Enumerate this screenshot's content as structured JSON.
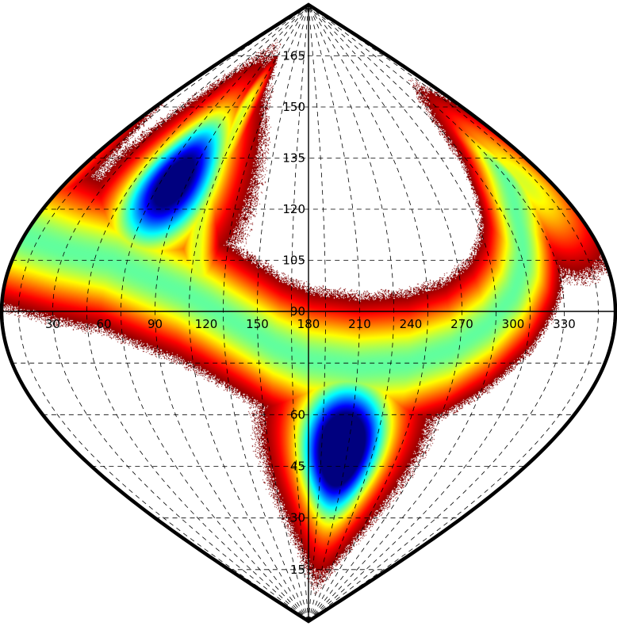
{
  "chart_data": {
    "type": "heatmap",
    "projection": "sinusoidal",
    "title": "",
    "xlabel": "",
    "ylabel": "",
    "x_range": [
      0,
      360
    ],
    "y_range": [
      0,
      180
    ],
    "x_tick_values": [
      30,
      60,
      90,
      120,
      150,
      180,
      210,
      240,
      270,
      300,
      330
    ],
    "x_tick_labels": [
      "30",
      "60",
      "90",
      "120",
      "150",
      "180",
      "210",
      "240",
      "270",
      "300",
      "330"
    ],
    "y_tick_values": [
      15,
      30,
      45,
      60,
      90,
      105,
      120,
      135,
      150,
      165
    ],
    "y_tick_labels": [
      "15",
      "30",
      "45",
      "60",
      "90",
      "105",
      "120",
      "135",
      "150",
      "165"
    ],
    "grid": true,
    "colormap": "jet",
    "colormap_stops": [
      "#00007f",
      "#0000ff",
      "#007fff",
      "#00ffff",
      "#7fff7f",
      "#ffff00",
      "#ff7f00",
      "#ff0000",
      "#7f0000"
    ],
    "density_ridge": [
      {
        "x": 0,
        "y": 112
      },
      {
        "x": 30,
        "y": 108
      },
      {
        "x": 60,
        "y": 105
      },
      {
        "x": 85,
        "y": 100
      },
      {
        "x": 105,
        "y": 96
      },
      {
        "x": 120,
        "y": 92
      },
      {
        "x": 140,
        "y": 86
      },
      {
        "x": 160,
        "y": 80
      },
      {
        "x": 180,
        "y": 76
      },
      {
        "x": 210,
        "y": 74
      },
      {
        "x": 240,
        "y": 75
      },
      {
        "x": 265,
        "y": 79
      },
      {
        "x": 285,
        "y": 86
      },
      {
        "x": 300,
        "y": 95
      },
      {
        "x": 310,
        "y": 105
      },
      {
        "x": 318,
        "y": 118
      },
      {
        "x": 330,
        "y": 130
      }
    ],
    "density_arm": [
      {
        "x": 105,
        "y": 150
      },
      {
        "x": 108,
        "y": 138
      },
      {
        "x": 108,
        "y": 126
      },
      {
        "x": 109,
        "y": 114
      },
      {
        "x": 112,
        "y": 104
      },
      {
        "x": 120,
        "y": 92
      }
    ],
    "density_peaks": [
      {
        "x": 205,
        "y": 50,
        "level": 1.0
      },
      {
        "x": 80,
        "y": 128,
        "level": 0.82
      }
    ]
  }
}
